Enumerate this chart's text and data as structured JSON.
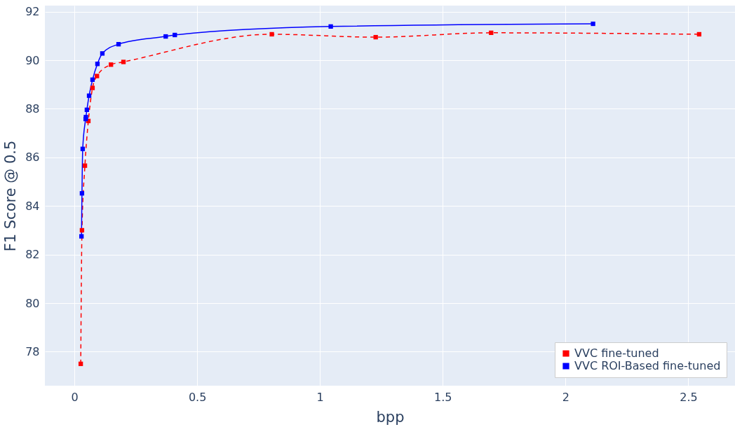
{
  "chart_data": {
    "type": "line",
    "xlabel": "bpp",
    "ylabel": "F1 Score @ 0.5",
    "xlim": [
      -0.12,
      2.69
    ],
    "ylim": [
      76.6,
      92.25
    ],
    "xticks": [
      0,
      0.5,
      1,
      1.5,
      2,
      2.5
    ],
    "yticks": [
      78,
      80,
      82,
      84,
      86,
      88,
      90,
      92
    ],
    "grid": true,
    "legend": "bottom right",
    "marker": "square",
    "series": [
      {
        "name": "VVC fine-tuned",
        "color": "#ff0000",
        "line_style": "dashed",
        "x": [
          0.026,
          0.031,
          0.043,
          0.057,
          0.074,
          0.092,
          0.149,
          0.2,
          0.804,
          1.227,
          1.697,
          2.544
        ],
        "values": [
          77.5,
          83.0,
          85.66,
          87.5,
          88.86,
          89.35,
          89.82,
          89.93,
          91.07,
          90.95,
          91.13,
          91.07
        ]
      },
      {
        "name": "VVC ROI-Based fine-tuned",
        "color": "#0000ff",
        "line_style": "solid",
        "x": [
          0.029,
          0.031,
          0.034,
          0.046,
          0.047,
          0.051,
          0.06,
          0.074,
          0.094,
          0.114,
          0.18,
          0.372,
          0.409,
          1.044,
          2.112
        ],
        "values": [
          82.75,
          84.52,
          86.35,
          87.58,
          87.66,
          87.96,
          88.54,
          89.2,
          89.85,
          90.28,
          90.66,
          90.98,
          91.04,
          91.39,
          91.5
        ]
      }
    ]
  }
}
